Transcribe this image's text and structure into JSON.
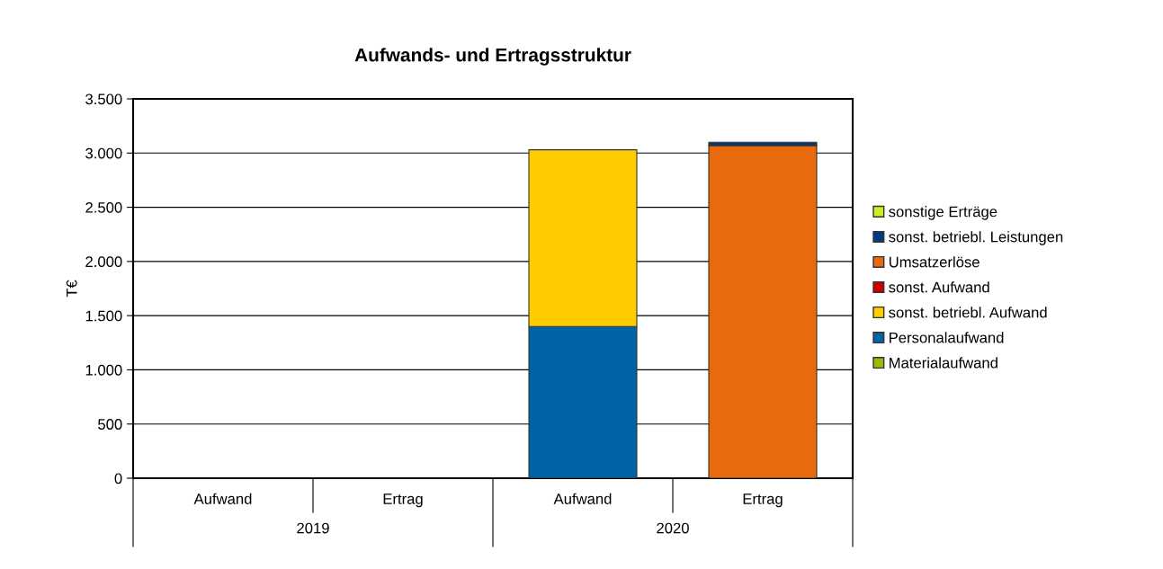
{
  "chart_data": {
    "type": "bar",
    "title": "Aufwands- und Ertragsstruktur",
    "ylabel": "T€",
    "categories": [
      "Aufwand",
      "Ertrag",
      "Aufwand",
      "Ertrag"
    ],
    "annotations": [
      "2019",
      "2020"
    ],
    "stacked": true,
    "series": [
      {
        "name": "Materialaufwand",
        "color": "#99bb00",
        "values": [
          0,
          0,
          0,
          0
        ]
      },
      {
        "name": "Personalaufwand",
        "color": "#0063a6",
        "values": [
          0,
          0,
          1400,
          0
        ]
      },
      {
        "name": "sonst. betriebl. Aufwand",
        "color": "#ffcc00",
        "values": [
          0,
          0,
          1630,
          0
        ]
      },
      {
        "name": "sonst. Aufwand",
        "color": "#cc0000",
        "values": [
          0,
          0,
          0,
          0
        ]
      },
      {
        "name": "Umsatzerlöse",
        "color": "#e8690e",
        "values": [
          0,
          0,
          0,
          3070
        ]
      },
      {
        "name": "sonst. betriebl. Leistungen",
        "color": "#003a80",
        "values": [
          0,
          0,
          0,
          30
        ]
      },
      {
        "name": "sonstige Erträge",
        "color": "#ccee22",
        "values": [
          0,
          0,
          0,
          0
        ]
      }
    ],
    "ylim": [
      0,
      3500
    ],
    "yticks": [
      {
        "value": 0,
        "label": "0"
      },
      {
        "value": 500,
        "label": "500"
      },
      {
        "value": 1000,
        "label": "1.000"
      },
      {
        "value": 1500,
        "label": "1.500"
      },
      {
        "value": 2000,
        "label": "2.000"
      },
      {
        "value": 2500,
        "label": "2.500"
      },
      {
        "value": 3000,
        "label": "3.000"
      },
      {
        "value": 3500,
        "label": "3.500"
      }
    ],
    "grid": "y",
    "legend": "right"
  }
}
